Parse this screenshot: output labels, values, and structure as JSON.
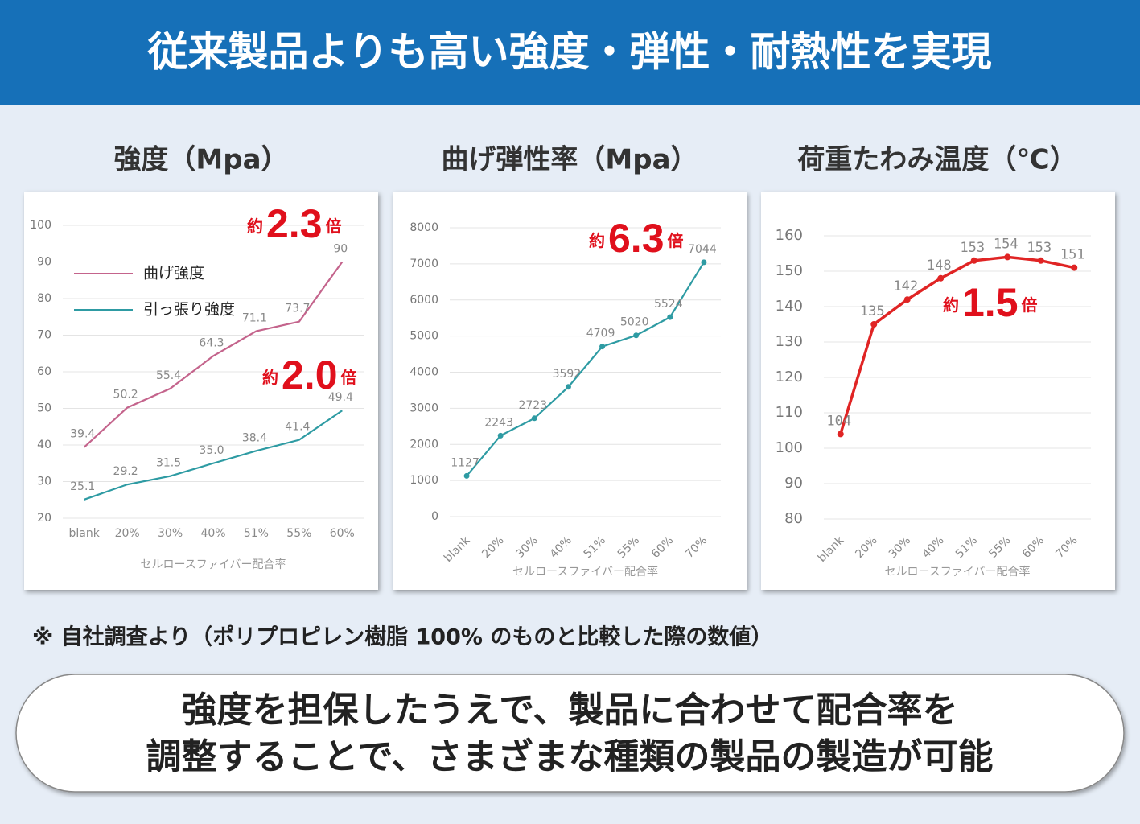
{
  "header": {
    "title": "従来製品よりも高い強度・弾性・耐熱性を実現"
  },
  "chart_data": [
    {
      "type": "line",
      "title": "強度（Mpa）",
      "x_label": "セルロースファイバー配合率",
      "categories": [
        "blank",
        "20%",
        "30%",
        "40%",
        "51%",
        "55%",
        "60%"
      ],
      "series": [
        {
          "name": "曲げ強度",
          "color": "#c4648c",
          "values": [
            39.4,
            50.2,
            55.4,
            64.3,
            71.1,
            73.7,
            90
          ]
        },
        {
          "name": "引っ張り強度",
          "color": "#2e9ba3",
          "values": [
            25.1,
            29.2,
            31.5,
            35.0,
            38.4,
            41.4,
            49.4
          ],
          "value_labels": [
            "25.1",
            "29.2",
            "31.5",
            "35.0",
            "38.4",
            "41.4",
            "49.4"
          ]
        }
      ],
      "ylim": [
        20,
        100
      ],
      "yticks": [
        20,
        30,
        40,
        50,
        60,
        70,
        80,
        90,
        100
      ],
      "grid": true,
      "legend": "upper left",
      "annotations": [
        {
          "prefix": "約",
          "value": "2.3",
          "suffix": "倍"
        },
        {
          "prefix": "約",
          "value": "2.0",
          "suffix": "倍"
        }
      ]
    },
    {
      "type": "line",
      "title": "曲げ弾性率（Mpa）",
      "x_label": "セルロースファイバー配合率",
      "categories": [
        "blank",
        "20%",
        "30%",
        "40%",
        "51%",
        "55%",
        "60%",
        "70%"
      ],
      "values": [
        1127,
        2243,
        2723,
        3592,
        4709,
        5020,
        5524,
        7044
      ],
      "color": "#2e9ba3",
      "ylim": [
        0,
        8000
      ],
      "yticks": [
        0,
        1000,
        2000,
        3000,
        4000,
        5000,
        6000,
        7000,
        8000
      ],
      "grid": true,
      "annotations": [
        {
          "prefix": "約",
          "value": "6.3",
          "suffix": "倍"
        }
      ]
    },
    {
      "type": "line",
      "title": "荷重たわみ温度（℃）",
      "x_label": "セルロースファイバー配合率",
      "categories": [
        "blank",
        "20%",
        "30%",
        "40%",
        "51%",
        "55%",
        "60%",
        "70%"
      ],
      "values": [
        104,
        135,
        142,
        148,
        153,
        154,
        153,
        151
      ],
      "color": "#e02424",
      "ylim": [
        80,
        160
      ],
      "yticks": [
        80,
        90,
        100,
        110,
        120,
        130,
        140,
        150,
        160
      ],
      "grid": true,
      "annotations": [
        {
          "prefix": "約",
          "value": "1.5",
          "suffix": "倍"
        }
      ]
    }
  ],
  "note": "※ 自社調査より（ポリプロピレン樹脂 100% のものと比較した際の数値）",
  "message": [
    "強度を担保したうえで、製品に合わせて配合率を",
    "調整することで、さまざまな種類の製品の製造が可能"
  ]
}
